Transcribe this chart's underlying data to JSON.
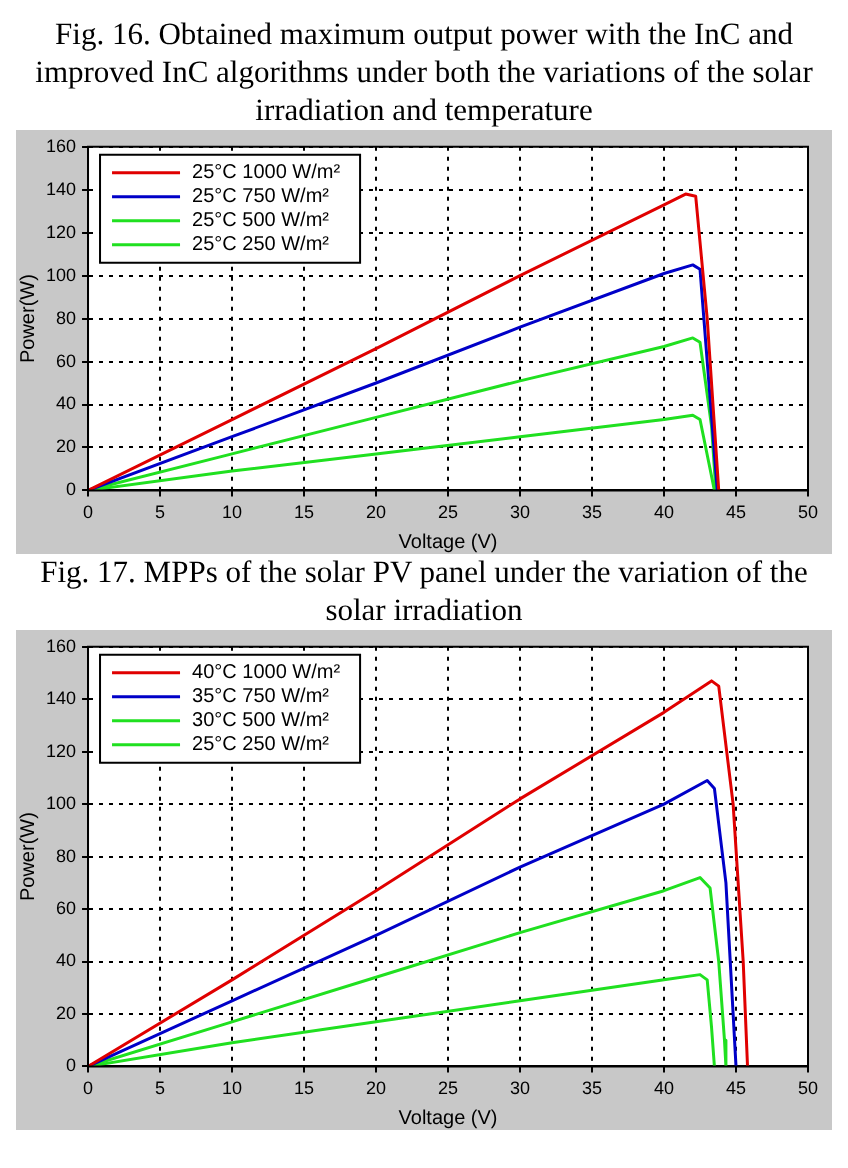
{
  "chart_data": [
    {
      "type": "line",
      "title": "Fig. 16. Obtained maximum output power with the InC and improved InC algorithms under both the variations of the solar irradiation and temperature",
      "xlabel": "Voltage (V)",
      "ylabel": "Power(W)",
      "xlim": [
        0,
        50
      ],
      "xticks": [
        0,
        5,
        10,
        15,
        20,
        25,
        30,
        35,
        40,
        45,
        50
      ],
      "ylim": [
        0,
        160
      ],
      "yticks": [
        0,
        20,
        40,
        60,
        80,
        100,
        120,
        140,
        160
      ],
      "grid": true,
      "legend": "top left",
      "marker": "none",
      "line_style": "solid",
      "series": [
        {
          "name": "25°C 1000 W/m²",
          "color": "#e00000",
          "x": [
            0,
            10,
            20,
            30,
            40,
            41.5,
            42.2,
            43,
            43.5,
            43.8
          ],
          "values": [
            0,
            33,
            66,
            100,
            133,
            138,
            137,
            80,
            30,
            0
          ]
        },
        {
          "name": "25°C 750 W/m²",
          "color": "#0000c8",
          "x": [
            0,
            10,
            20,
            30,
            40,
            42,
            42.5,
            43.7
          ],
          "values": [
            0,
            25,
            50,
            76,
            101,
            105,
            103,
            0
          ]
        },
        {
          "name": "25°C 500 W/m²",
          "color": "#20e020",
          "x": [
            0,
            10,
            20,
            30,
            40,
            42,
            42.5,
            43.3,
            43.6
          ],
          "values": [
            0,
            17,
            34,
            51,
            67,
            71,
            69,
            30,
            0
          ]
        },
        {
          "name": "25°C 250 W/m²",
          "color": "#20e020",
          "x": [
            0,
            10,
            20,
            30,
            40,
            42,
            42.5,
            43.2,
            43.5
          ],
          "values": [
            0,
            9,
            17,
            25,
            33,
            35,
            33,
            10,
            0
          ]
        }
      ]
    },
    {
      "type": "line",
      "title": "Fig. 17. MPPs of the solar PV panel under the variation of the solar irradiation",
      "xlabel": "Voltage (V)",
      "ylabel": "Power(W)",
      "xlim": [
        0,
        50
      ],
      "xticks": [
        0,
        5,
        10,
        15,
        20,
        25,
        30,
        35,
        40,
        45,
        50
      ],
      "ylim": [
        0,
        160
      ],
      "yticks": [
        0,
        20,
        40,
        60,
        80,
        100,
        120,
        140,
        160
      ],
      "grid": true,
      "legend": "top left",
      "marker": "none",
      "line_style": "solid",
      "series": [
        {
          "name": "40°C 1000 W/m²",
          "color": "#e00000",
          "x": [
            0,
            10,
            20,
            30,
            40,
            43.3,
            43.8,
            44.8,
            45.5,
            45.8
          ],
          "values": [
            0,
            33,
            67,
            102,
            135,
            147,
            145,
            100,
            40,
            0
          ]
        },
        {
          "name": "35°C 750 W/m²",
          "color": "#0000c8",
          "x": [
            0,
            10,
            20,
            30,
            40,
            43,
            43.5,
            44.3,
            44.8,
            45
          ],
          "values": [
            0,
            25,
            50,
            76,
            100,
            109,
            106,
            70,
            20,
            0
          ]
        },
        {
          "name": "30°C 500 W/m²",
          "color": "#20e020",
          "x": [
            0,
            10,
            20,
            30,
            40,
            42.5,
            43.2,
            43.8,
            44.2,
            44.3
          ],
          "values": [
            0,
            17,
            34,
            51,
            67,
            72,
            68,
            40,
            10,
            0
          ]
        },
        {
          "name": "25°C 250 W/m²",
          "color": "#20e020",
          "x": [
            0,
            10,
            20,
            30,
            40,
            42.5,
            43,
            43.3,
            43.5
          ],
          "values": [
            0,
            9,
            17,
            25,
            33,
            35,
            33,
            15,
            0
          ]
        }
      ]
    }
  ]
}
